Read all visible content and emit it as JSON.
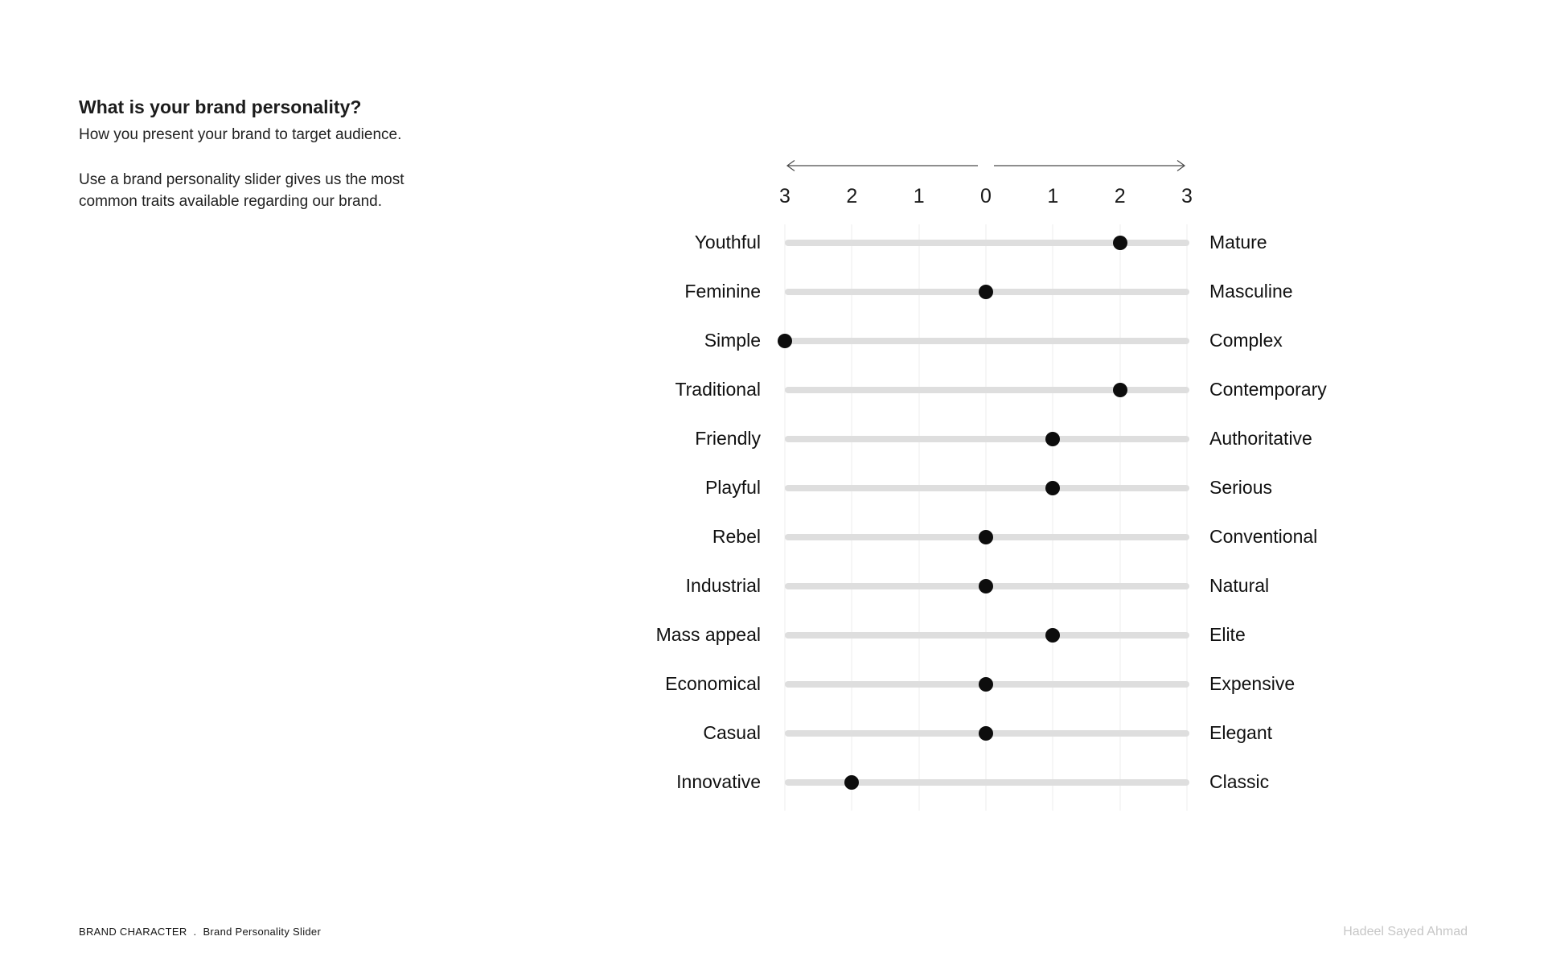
{
  "intro": {
    "title": "What is your brand personality?",
    "subtitle": "How you present your brand to target audience.",
    "description": "Use a brand personality slider gives us the most common traits available regarding our brand."
  },
  "chart_data": {
    "type": "scatter",
    "title": "Brand Personality Slider",
    "axis": {
      "tick_labels": [
        "3",
        "2",
        "1",
        "0",
        "1",
        "2",
        "3"
      ],
      "range": [
        -3,
        3
      ],
      "grid": true,
      "note": "negative values = toward left trait, positive = toward right trait"
    },
    "rows": [
      {
        "left": "Youthful",
        "right": "Mature",
        "value": 2
      },
      {
        "left": "Feminine",
        "right": "Masculine",
        "value": 0
      },
      {
        "left": "Simple",
        "right": "Complex",
        "value": -3
      },
      {
        "left": "Traditional",
        "right": "Contemporary",
        "value": 2
      },
      {
        "left": "Friendly",
        "right": "Authoritative",
        "value": 1
      },
      {
        "left": "Playful",
        "right": "Serious",
        "value": 1
      },
      {
        "left": "Rebel",
        "right": "Conventional",
        "value": 0
      },
      {
        "left": "Industrial",
        "right": "Natural",
        "value": 0
      },
      {
        "left": "Mass appeal",
        "right": "Elite",
        "value": 1
      },
      {
        "left": "Economical",
        "right": "Expensive",
        "value": 0
      },
      {
        "left": "Casual",
        "right": "Elegant",
        "value": 0
      },
      {
        "left": "Innovative",
        "right": "Classic",
        "value": -2
      }
    ]
  },
  "footer": {
    "section": "BRAND CHARACTER",
    "separator": ".",
    "page_title": "Brand Personality Slider",
    "author": "Hadeel Sayed Ahmad"
  },
  "colors": {
    "track": "#dedede",
    "gridline": "#ededed",
    "dot": "#0d0d0d",
    "text": "#1a1a1a",
    "muted": "#c6c6c6"
  }
}
